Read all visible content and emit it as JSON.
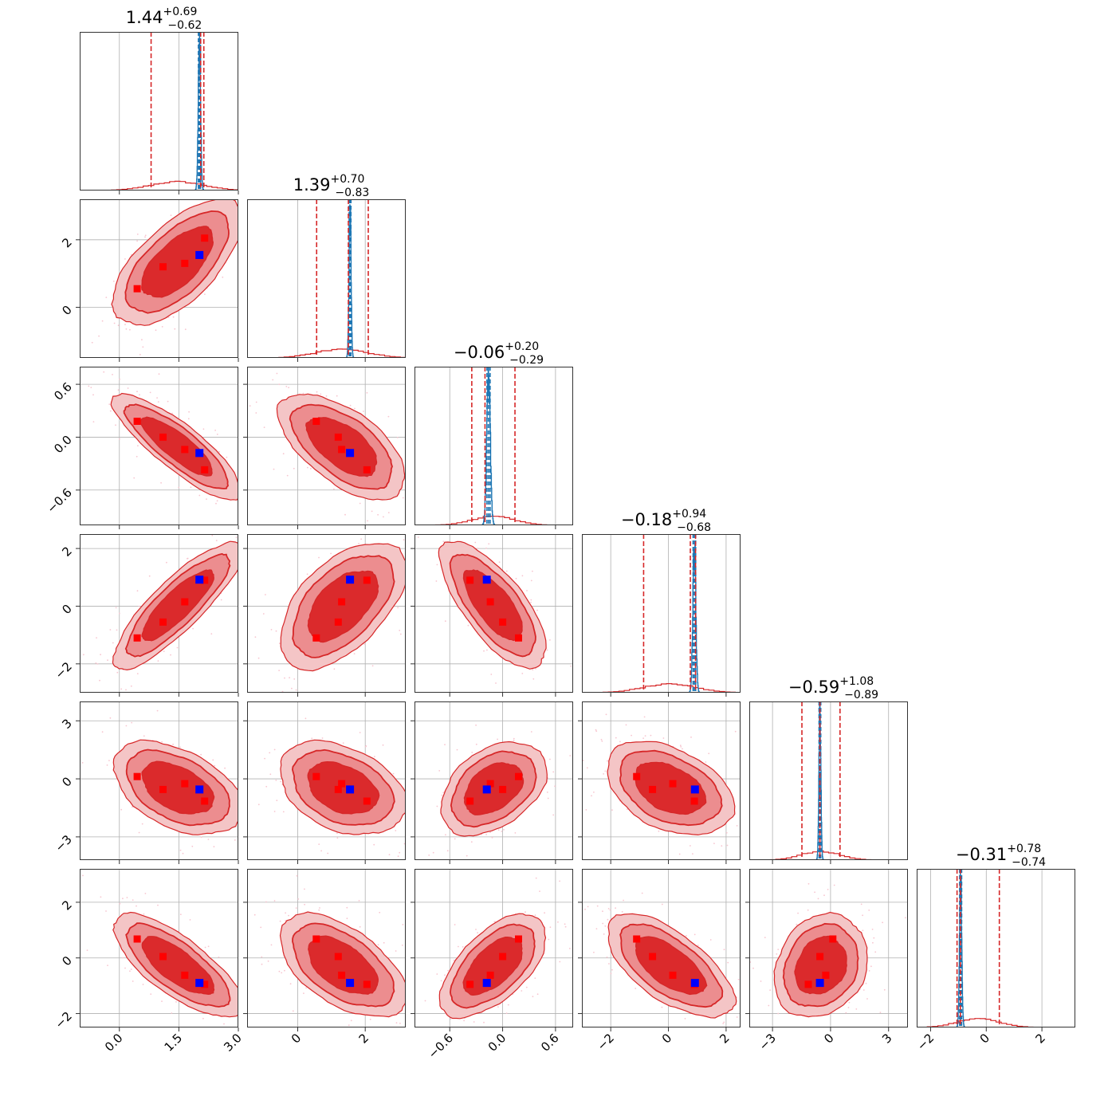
{
  "chart_data": {
    "type": "corner",
    "n_params": 6,
    "colors": {
      "posterior": "#d62728",
      "contour_outer": "#f4c5c6",
      "contour_mid": "#ec8d8f",
      "contour_inner": "#db2a2c",
      "reference": "#1f77b4",
      "truth_marker": "#0000ff",
      "sample_marker": "#ff0000",
      "scatter": "#f7c6d0",
      "grid": "#b0b0b0"
    },
    "parameters": [
      {
        "median": "1.44",
        "plus": "+0.69",
        "minus": "−0.62",
        "range": [
          -1.0,
          3.0
        ],
        "ticks": [
          0.0,
          1.5,
          3.0
        ],
        "tick_labels": [
          "0.0",
          "1.5",
          "3.0"
        ],
        "quantiles": [
          0.8,
          2.05,
          2.13
        ],
        "ref": 2.02,
        "ref_sd": 0.03
      },
      {
        "median": "1.39",
        "plus": "+0.70",
        "minus": "−0.83",
        "range": [
          -1.5,
          3.2
        ],
        "ticks": [
          0,
          2
        ],
        "tick_labels": [
          "0",
          "2"
        ],
        "quantiles": [
          0.56,
          1.5,
          2.09
        ],
        "ref": 1.55,
        "ref_sd": 0.03
      },
      {
        "median": "−0.06",
        "plus": "+0.20",
        "minus": "−0.29",
        "range": [
          -1.0,
          0.8
        ],
        "ticks": [
          -0.6,
          0.0,
          0.6
        ],
        "tick_labels": [
          "−0.6",
          "0.0",
          "0.6"
        ],
        "quantiles": [
          -0.35,
          -0.2,
          0.14
        ],
        "ref": -0.16,
        "ref_sd": 0.02
      },
      {
        "median": "−0.18",
        "plus": "+0.94",
        "minus": "−0.68",
        "range": [
          -3.0,
          2.5
        ],
        "ticks": [
          -2,
          0,
          2
        ],
        "tick_labels": [
          "−2",
          "0",
          "2"
        ],
        "quantiles": [
          -0.86,
          0.76,
          0.94
        ],
        "ref": 0.9,
        "ref_sd": 0.05
      },
      {
        "median": "−0.59",
        "plus": "+1.08",
        "minus": "−0.89",
        "range": [
          -4.2,
          4.0
        ],
        "ticks": [
          -3,
          0,
          3
        ],
        "tick_labels": [
          "−3",
          "0",
          "3"
        ],
        "quantiles": [
          -1.48,
          -0.55,
          0.49
        ],
        "ref": -0.55,
        "ref_sd": 0.05
      },
      {
        "median": "−0.31",
        "plus": "+0.78",
        "minus": "−0.74",
        "range": [
          -2.5,
          3.2
        ],
        "ticks": [
          -2,
          0,
          2
        ],
        "tick_labels": [
          "−2",
          "0",
          "2"
        ],
        "quantiles": [
          -1.05,
          -0.93,
          0.47
        ],
        "ref": -0.92,
        "ref_sd": 0.04
      }
    ],
    "posterior_samples": [
      [
        0.45,
        0.55,
        0.18,
        -1.1,
        0.12,
        0.68
      ],
      [
        1.1,
        1.2,
        0.0,
        -0.55,
        -0.55,
        0.05
      ],
      [
        1.65,
        1.3,
        -0.14,
        0.15,
        -0.25,
        -0.62
      ],
      [
        2.15,
        2.05,
        -0.37,
        0.9,
        -1.15,
        -0.95
      ]
    ],
    "truth": [
      2.02,
      1.55,
      -0.18,
      0.92,
      -0.55,
      -0.9
    ],
    "correlations": [
      [
        1.0,
        0.65,
        -0.85,
        0.85,
        -0.45,
        -0.75
      ],
      [
        0.65,
        1.0,
        -0.6,
        0.55,
        -0.35,
        -0.55
      ],
      [
        -0.85,
        -0.6,
        1.0,
        -0.72,
        0.4,
        0.6
      ],
      [
        0.85,
        0.55,
        -0.72,
        1.0,
        -0.4,
        -0.65
      ],
      [
        -0.45,
        -0.35,
        0.4,
        -0.4,
        1.0,
        0.2
      ],
      [
        -0.75,
        -0.55,
        0.6,
        -0.65,
        0.2,
        1.0
      ]
    ]
  }
}
